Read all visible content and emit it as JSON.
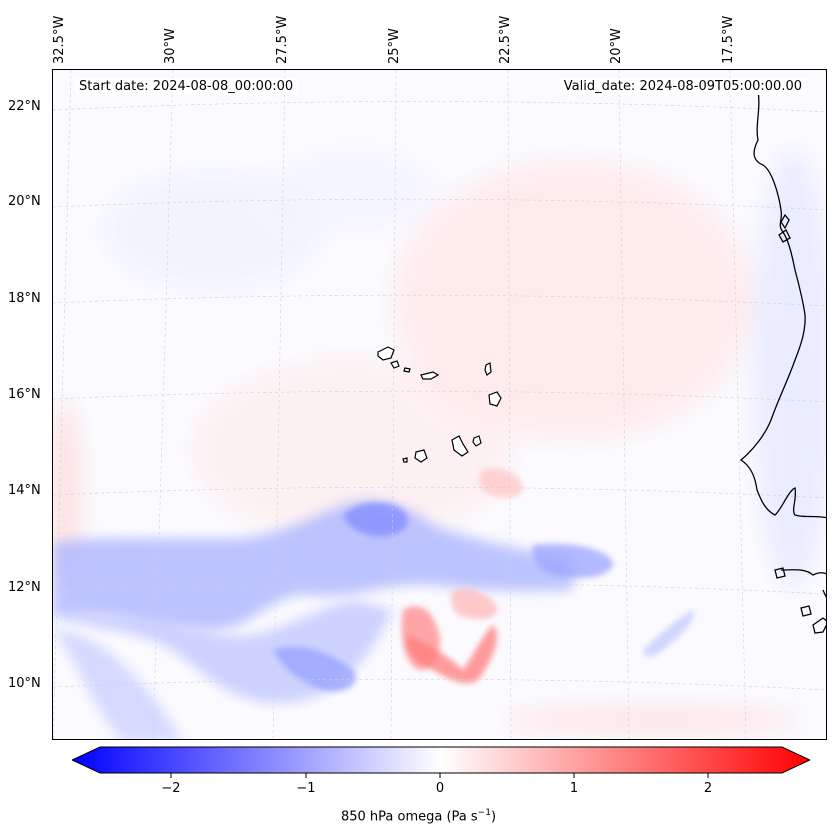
{
  "header": {
    "start_date": "Start date: 2024-08-08_00:00:00",
    "valid_date": "Valid_date: 2024-08-09T05:00:00.00"
  },
  "longitude_labels": [
    "32.5°W",
    "30°W",
    "27.5°W",
    "25°W",
    "22.5°W",
    "20°W",
    "17.5°W"
  ],
  "latitude_labels": [
    "22°N",
    "20°N",
    "18°N",
    "16°N",
    "14°N",
    "12°N",
    "10°N"
  ],
  "colorbar": {
    "ticks": [
      "−2",
      "−1",
      "0",
      "1",
      "2"
    ],
    "label": "850 hPa omega (Pa s",
    "label_exp": "−1",
    "label_close": ")",
    "min_color": "#0000ff",
    "mid_color": "#ffffff",
    "max_color": "#ff0000"
  },
  "map": {
    "variable": "850 hPa omega",
    "projection": "lambert-conformal",
    "region": "Cape Verde / West African coast",
    "coastline_color": "#000000",
    "grid_color": "#cccccc"
  }
}
